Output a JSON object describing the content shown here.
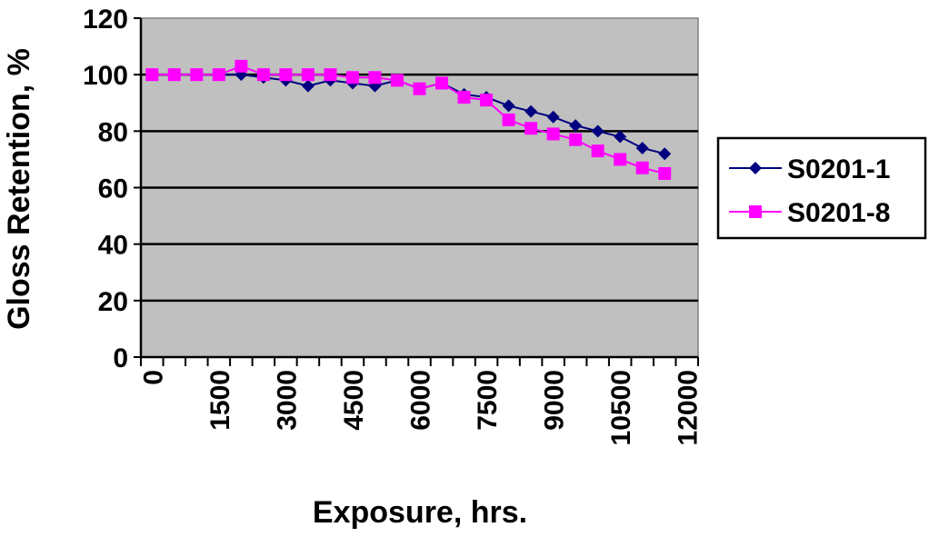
{
  "chart_data": {
    "type": "line",
    "title": "",
    "xlabel": "Exposure, hrs.",
    "ylabel": "Gloss Retention, %",
    "ylim": [
      0,
      120
    ],
    "y_ticks": [
      "0",
      "20",
      "40",
      "60",
      "80",
      "100",
      "120"
    ],
    "x_tick_labels": [
      "0",
      "1500",
      "3000",
      "4500",
      "6000",
      "7500",
      "9000",
      "10500",
      "12000"
    ],
    "x": [
      0,
      500,
      1000,
      1500,
      2000,
      2500,
      3000,
      3500,
      4000,
      4500,
      5000,
      5500,
      6000,
      6500,
      7000,
      7500,
      8000,
      8500,
      9000,
      9500,
      10000,
      10500,
      11000,
      11500
    ],
    "series": [
      {
        "name": "S0201-1",
        "color": "#000080",
        "marker": "diamond",
        "values": [
          100,
          100,
          100,
          100,
          100,
          99,
          98,
          96,
          98,
          97,
          96,
          98,
          95,
          97,
          93,
          92,
          89,
          87,
          85,
          82,
          80,
          78,
          74,
          72
        ]
      },
      {
        "name": "S0201-8",
        "color": "#FF00FF",
        "marker": "square",
        "values": [
          100,
          100,
          100,
          100,
          103,
          100,
          100,
          100,
          100,
          99,
          99,
          98,
          95,
          97,
          92,
          91,
          84,
          81,
          79,
          77,
          73,
          70,
          67,
          65
        ]
      }
    ],
    "grid": true,
    "plot_background": "#C0C0C0",
    "legend_position": "right"
  }
}
